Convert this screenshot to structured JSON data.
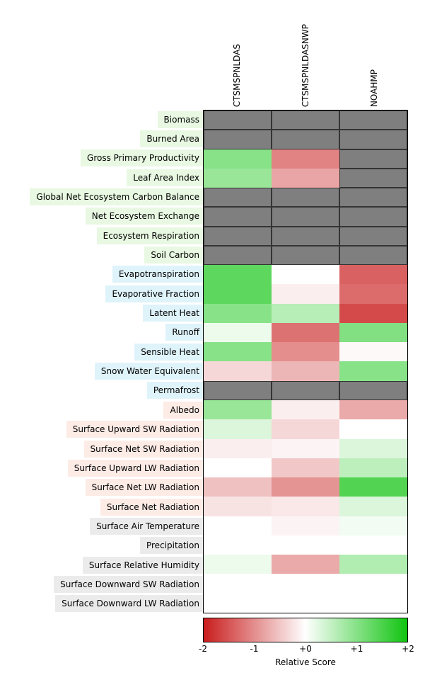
{
  "chart_data": {
    "type": "heatmap",
    "title": "",
    "columns": [
      "CTSMSPNLDAS",
      "CTSMSPNLDASNWP",
      "NOAHMP"
    ],
    "rows": [
      "Biomass",
      "Burned Area",
      "Gross Primary Productivity",
      "Leaf Area Index",
      "Global Net Ecosystem Carbon Balance",
      "Net Ecosystem Exchange",
      "Ecosystem Respiration",
      "Soil Carbon",
      "Evapotranspiration",
      "Evaporative Fraction",
      "Latent Heat",
      "Runoff",
      "Sensible Heat",
      "Snow Water Equivalent",
      "Permafrost",
      "Albedo",
      "Surface Upward SW Radiation",
      "Surface Net SW Radiation",
      "Surface Upward LW Radiation",
      "Surface Net LW Radiation",
      "Surface Net Radiation",
      "Surface Air Temperature",
      "Precipitation",
      "Surface Relative Humidity",
      "Surface Downward SW Radiation",
      "Surface Downward LW Radiation"
    ],
    "row_categories": [
      "ecosystem",
      "ecosystem",
      "ecosystem",
      "ecosystem",
      "ecosystem",
      "ecosystem",
      "ecosystem",
      "ecosystem",
      "hydrology",
      "hydrology",
      "hydrology",
      "hydrology",
      "hydrology",
      "hydrology",
      "hydrology",
      "radiation",
      "radiation",
      "radiation",
      "radiation",
      "radiation",
      "radiation",
      "forcing",
      "forcing",
      "forcing",
      "forcing",
      "forcing"
    ],
    "values": [
      [
        null,
        null,
        null
      ],
      [
        null,
        null,
        null
      ],
      [
        1.0,
        -1.1,
        null
      ],
      [
        0.85,
        -0.8,
        null
      ],
      [
        null,
        null,
        null
      ],
      [
        null,
        null,
        null
      ],
      [
        null,
        null,
        null
      ],
      [
        null,
        null,
        null
      ],
      [
        1.35,
        0.0,
        -1.4
      ],
      [
        1.35,
        -0.15,
        -1.3
      ],
      [
        1.0,
        0.6,
        -1.6
      ],
      [
        0.15,
        -1.25,
        1.05
      ],
      [
        1.0,
        -1.0,
        -0.05
      ],
      [
        -0.35,
        -0.65,
        1.0
      ],
      [
        null,
        null,
        null
      ],
      [
        0.85,
        -0.15,
        -0.75
      ],
      [
        0.3,
        -0.35,
        0.0
      ],
      [
        -0.15,
        -0.1,
        0.3
      ],
      [
        0.0,
        -0.5,
        0.55
      ],
      [
        -0.55,
        -0.95,
        1.45
      ],
      [
        -0.25,
        -0.2,
        0.3
      ],
      [
        0.0,
        -0.1,
        0.1
      ],
      [
        0.0,
        0.0,
        0.0
      ],
      [
        0.15,
        -0.75,
        0.65
      ],
      [
        0.0,
        0.0,
        0.0
      ],
      [
        0.0,
        0.0,
        0.0
      ]
    ],
    "value_range": [
      -2,
      2
    ],
    "missing_color": "#7f7f7f",
    "category_colors": {
      "ecosystem": "#e8f8e2",
      "hydrology": "#dff3fb",
      "radiation": "#fdebe6",
      "forcing": "#ebebeb"
    },
    "colormap": {
      "negative_end": "#c91d1d",
      "zero": "#ffffff",
      "positive_end": "#10c410"
    },
    "colorbar": {
      "label": "Relative Score",
      "ticks": [
        "-2",
        "-1",
        "+0",
        "+1",
        "+2"
      ],
      "tick_values": [
        -2,
        -1,
        0,
        1,
        2
      ]
    }
  }
}
